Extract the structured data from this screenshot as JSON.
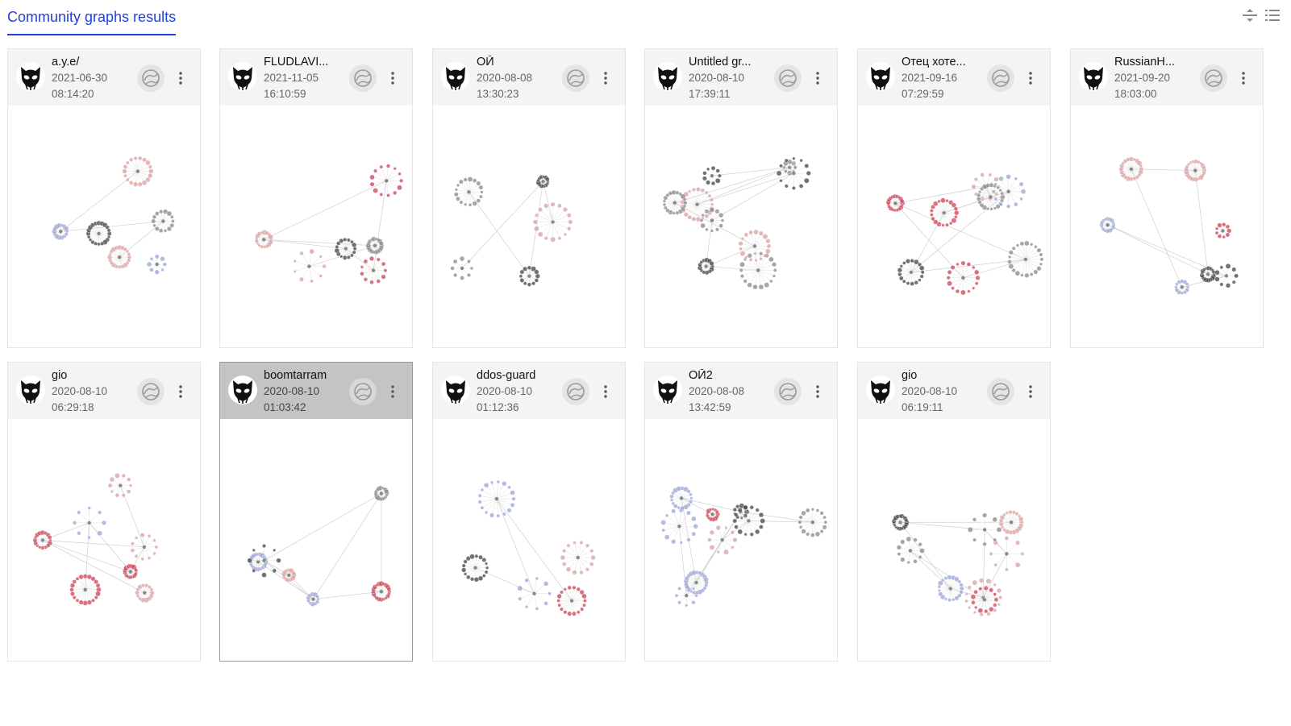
{
  "header": {
    "title": "Community graphs results",
    "icons": [
      "split-view-icon",
      "list-view-icon"
    ],
    "accent_color": "#2440d6"
  },
  "cards": [
    {
      "name": "a.y.e/",
      "date": "2021-06-30",
      "time": "08:14:20",
      "selected": false
    },
    {
      "name": "FLUDLAVI...",
      "date": "2021-11-05",
      "time": "16:10:59",
      "selected": false
    },
    {
      "name": "ОЙ",
      "date": "2020-08-08",
      "time": "13:30:23",
      "selected": false
    },
    {
      "name": "Untitled gr...",
      "date": "2020-08-10",
      "time": "17:39:11",
      "selected": false
    },
    {
      "name": "Отец хоте...",
      "date": "2021-09-16",
      "time": "07:29:59",
      "selected": false
    },
    {
      "name": "RussianH...",
      "date": "2021-09-20",
      "time": "18:03:00",
      "selected": false
    },
    {
      "name": "gio",
      "date": "2020-08-10",
      "time": "06:29:18",
      "selected": false
    },
    {
      "name": "boomtarram",
      "date": "2020-08-10",
      "time": "01:03:42",
      "selected": true
    },
    {
      "name": "ddos-guard",
      "date": "2020-08-10",
      "time": "01:12:36",
      "selected": false
    },
    {
      "name": "ОЙ2",
      "date": "2020-08-08",
      "time": "13:42:59",
      "selected": false
    },
    {
      "name": "gio",
      "date": "2020-08-10",
      "time": "06:19:11",
      "selected": false
    }
  ],
  "node_colors": [
    "#9aa6d6",
    "#d9a0a0",
    "#888888",
    "#444444",
    "#cc4455"
  ]
}
